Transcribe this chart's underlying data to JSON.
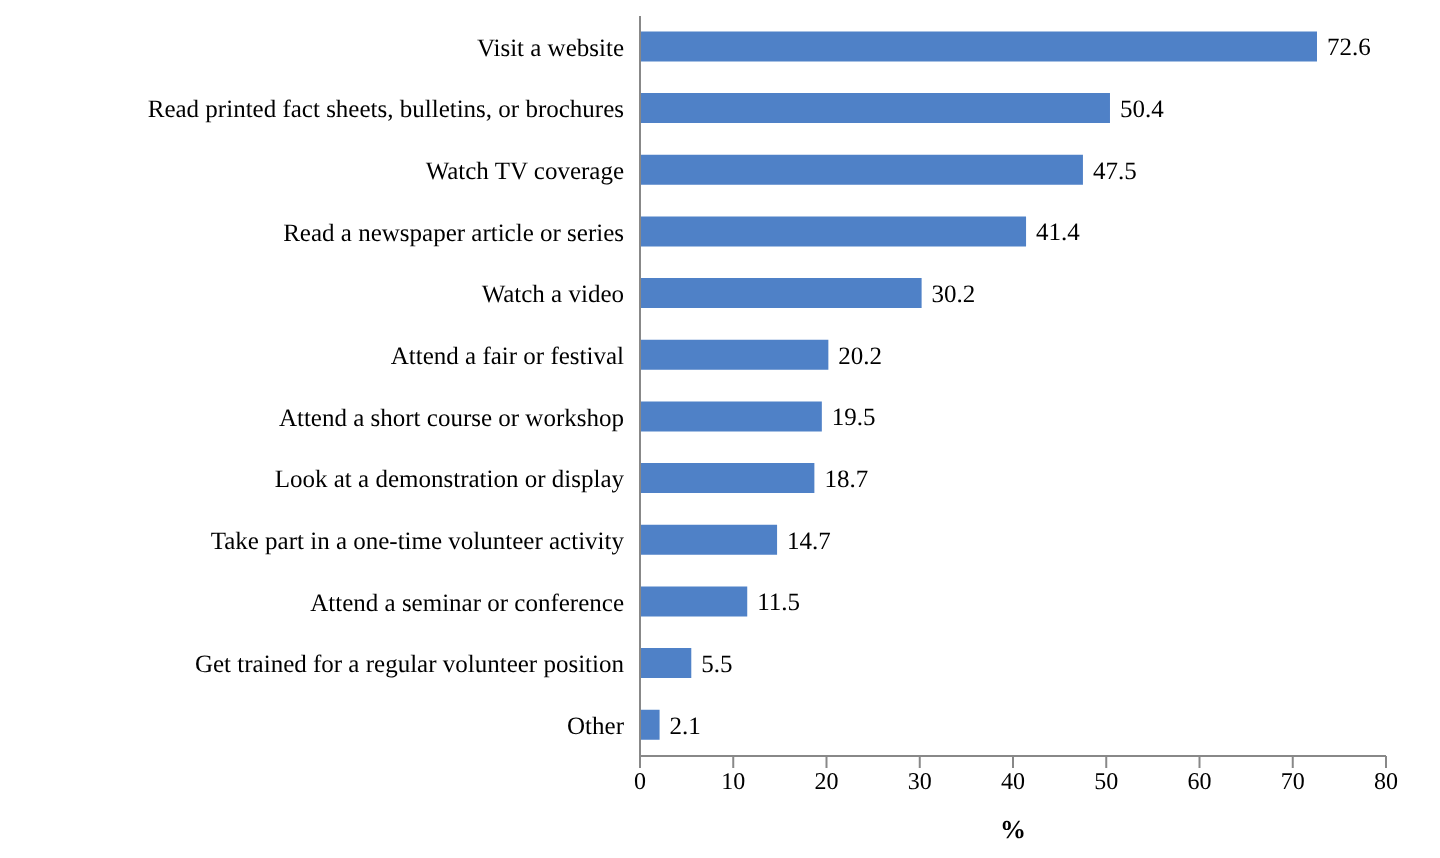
{
  "chart_data": {
    "type": "bar",
    "orientation": "horizontal",
    "xlabel": "%",
    "categories": [
      "Visit a website",
      "Read printed fact sheets, bulletins, or brochures",
      "Watch TV coverage",
      "Read a newspaper article or series",
      "Watch a video",
      "Attend a fair or festival",
      "Attend a short course or workshop",
      "Look at a demonstration or display",
      "Take part in a one-time volunteer activity",
      "Attend a seminar or conference",
      "Get trained for a regular volunteer position",
      "Other"
    ],
    "values": [
      72.6,
      50.4,
      47.5,
      41.4,
      30.2,
      20.2,
      19.5,
      18.7,
      14.7,
      11.5,
      5.5,
      2.1
    ],
    "color": "#4f81c7",
    "xlim": [
      0,
      80
    ],
    "xticks": [
      0,
      10,
      20,
      30,
      40,
      50,
      60,
      70,
      80
    ],
    "data_labels": true,
    "grid": false
  }
}
